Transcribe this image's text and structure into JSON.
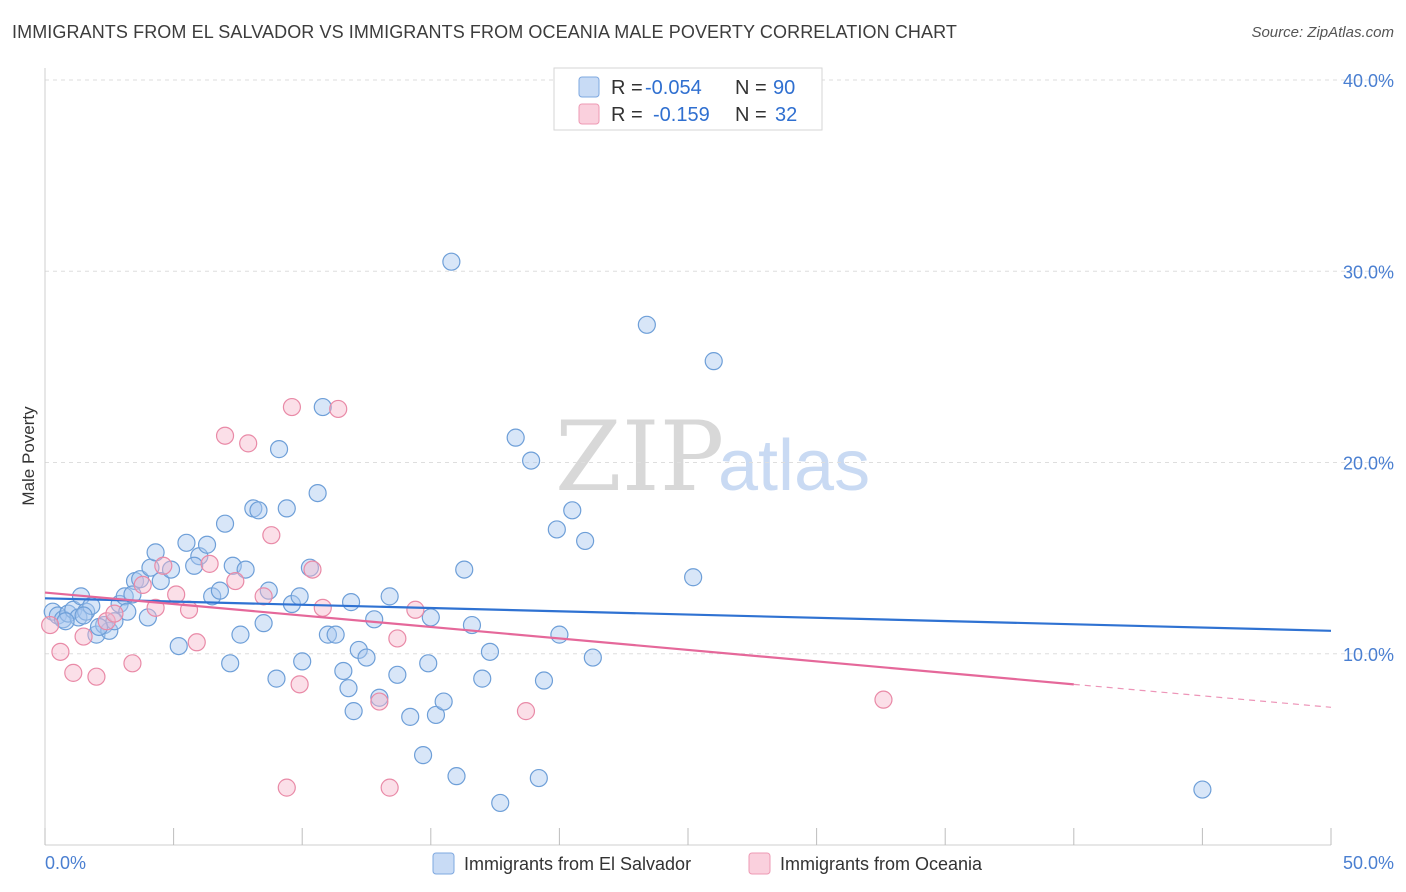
{
  "title": "IMMIGRANTS FROM EL SALVADOR VS IMMIGRANTS FROM OCEANIA MALE POVERTY CORRELATION CHART",
  "source": "Source: ZipAtlas.com",
  "watermark": {
    "part1": "ZIP",
    "part2": "atlas"
  },
  "legend": {
    "rows": [
      {
        "r_label": "R =",
        "r_value": "-0.054",
        "n_label": "N =",
        "n_value": "90",
        "color": "#a9c8f0"
      },
      {
        "r_label": "R =",
        "r_value": "-0.159",
        "n_label": "N =",
        "n_value": "32",
        "color": "#f6b8cb"
      }
    ]
  },
  "chart_data": {
    "type": "scatter",
    "xlabel": "",
    "ylabel": "Male Poverty",
    "xlim": [
      0,
      50
    ],
    "ylim": [
      0,
      40
    ],
    "x_tick_labels": {
      "min": "0.0%",
      "max": "50.0%"
    },
    "y_ticks": [
      {
        "value": 10,
        "label": "10.0%"
      },
      {
        "value": 20,
        "label": "20.0%"
      },
      {
        "value": 30,
        "label": "30.0%"
      },
      {
        "value": 40,
        "label": "40.0%"
      }
    ],
    "series": [
      {
        "name": "Immigrants from El Salvador",
        "color": "#a9c8f0",
        "stroke": "#6e9fd8",
        "line_color": "#2f72d2",
        "trend": {
          "x0": 0,
          "y0": 12.9,
          "x1": 50,
          "y1": 11.2,
          "solid_to": 50
        },
        "points": [
          [
            0.3,
            12.2
          ],
          [
            0.5,
            12.0
          ],
          [
            0.7,
            11.8
          ],
          [
            0.9,
            12.1
          ],
          [
            1.1,
            12.3
          ],
          [
            1.3,
            11.9
          ],
          [
            1.4,
            13.0
          ],
          [
            1.6,
            12.2
          ],
          [
            1.8,
            12.5
          ],
          [
            2.0,
            11.0
          ],
          [
            2.3,
            11.5
          ],
          [
            2.5,
            11.2
          ],
          [
            2.9,
            12.6
          ],
          [
            3.1,
            13.0
          ],
          [
            3.5,
            13.8
          ],
          [
            3.7,
            13.9
          ],
          [
            4.1,
            14.5
          ],
          [
            4.3,
            15.3
          ],
          [
            4.5,
            13.8
          ],
          [
            4.9,
            14.4
          ],
          [
            5.5,
            15.8
          ],
          [
            6.0,
            15.1
          ],
          [
            6.5,
            13.0
          ],
          [
            7.0,
            16.8
          ],
          [
            7.3,
            14.6
          ],
          [
            7.8,
            14.4
          ],
          [
            8.1,
            17.6
          ],
          [
            8.5,
            11.6
          ],
          [
            8.7,
            13.3
          ],
          [
            9.1,
            20.7
          ],
          [
            9.4,
            17.6
          ],
          [
            9.6,
            12.6
          ],
          [
            10.3,
            14.5
          ],
          [
            10.6,
            18.4
          ],
          [
            10.8,
            22.9
          ],
          [
            11.0,
            11.0
          ],
          [
            11.3,
            11.0
          ],
          [
            11.6,
            9.1
          ],
          [
            11.8,
            8.2
          ],
          [
            12.2,
            10.2
          ],
          [
            12.5,
            9.8
          ],
          [
            12.8,
            11.8
          ],
          [
            13.4,
            13.0
          ],
          [
            13.7,
            8.9
          ],
          [
            14.2,
            6.7
          ],
          [
            14.7,
            4.7
          ],
          [
            15.2,
            6.8
          ],
          [
            15.5,
            7.5
          ],
          [
            15.8,
            30.5
          ],
          [
            16.3,
            14.4
          ],
          [
            16.6,
            11.5
          ],
          [
            17.3,
            10.1
          ],
          [
            17.7,
            2.2
          ],
          [
            18.3,
            21.3
          ],
          [
            18.9,
            20.1
          ],
          [
            19.4,
            8.6
          ],
          [
            19.9,
            16.5
          ],
          [
            20.5,
            17.5
          ],
          [
            21.0,
            15.9
          ],
          [
            21.3,
            9.8
          ],
          [
            23.4,
            27.2
          ],
          [
            25.2,
            14.0
          ],
          [
            26.0,
            25.3
          ],
          [
            45.0,
            2.9
          ],
          [
            6.3,
            15.7
          ],
          [
            5.2,
            10.4
          ],
          [
            4.0,
            11.9
          ],
          [
            3.2,
            12.2
          ],
          [
            0.8,
            11.7
          ],
          [
            2.7,
            11.7
          ],
          [
            1.5,
            12.0
          ],
          [
            7.6,
            11.0
          ],
          [
            9.9,
            13.0
          ],
          [
            11.9,
            12.7
          ],
          [
            12.0,
            7.0
          ],
          [
            13.0,
            7.7
          ],
          [
            14.9,
            9.5
          ],
          [
            16.0,
            3.6
          ],
          [
            17.0,
            8.7
          ],
          [
            19.2,
            3.5
          ],
          [
            20.0,
            11.0
          ],
          [
            7.2,
            9.5
          ],
          [
            9.0,
            8.7
          ],
          [
            10.0,
            9.6
          ],
          [
            15.0,
            11.9
          ],
          [
            8.3,
            17.5
          ],
          [
            6.8,
            13.3
          ],
          [
            5.8,
            14.6
          ],
          [
            3.4,
            13.1
          ],
          [
            2.1,
            11.4
          ]
        ]
      },
      {
        "name": "Immigrants from Oceania",
        "color": "#f6b8cb",
        "stroke": "#e98aa7",
        "line_color": "#e5689a",
        "trend": {
          "x0": 0,
          "y0": 13.2,
          "x1": 50,
          "y1": 7.2,
          "solid_to": 40
        },
        "points": [
          [
            0.2,
            11.5
          ],
          [
            0.6,
            10.1
          ],
          [
            1.1,
            9.0
          ],
          [
            1.5,
            10.9
          ],
          [
            2.0,
            8.8
          ],
          [
            2.4,
            11.7
          ],
          [
            2.7,
            12.1
          ],
          [
            3.4,
            9.5
          ],
          [
            3.8,
            13.6
          ],
          [
            4.3,
            12.4
          ],
          [
            4.6,
            14.6
          ],
          [
            5.1,
            13.1
          ],
          [
            5.6,
            12.3
          ],
          [
            5.9,
            10.6
          ],
          [
            6.4,
            14.7
          ],
          [
            7.0,
            21.4
          ],
          [
            7.4,
            13.8
          ],
          [
            7.9,
            21.0
          ],
          [
            8.5,
            13.0
          ],
          [
            8.8,
            16.2
          ],
          [
            9.4,
            3.0
          ],
          [
            9.6,
            22.9
          ],
          [
            9.9,
            8.4
          ],
          [
            10.4,
            14.4
          ],
          [
            10.8,
            12.4
          ],
          [
            11.4,
            22.8
          ],
          [
            13.0,
            7.5
          ],
          [
            13.4,
            3.0
          ],
          [
            13.7,
            10.8
          ],
          [
            14.4,
            12.3
          ],
          [
            18.7,
            7.0
          ],
          [
            32.6,
            7.6
          ]
        ]
      }
    ]
  },
  "bottom_legend": [
    {
      "label": "Immigrants from El Salvador",
      "color": "#a9c8f0"
    },
    {
      "label": "Immigrants from Oceania",
      "color": "#f6b8cb"
    }
  ]
}
